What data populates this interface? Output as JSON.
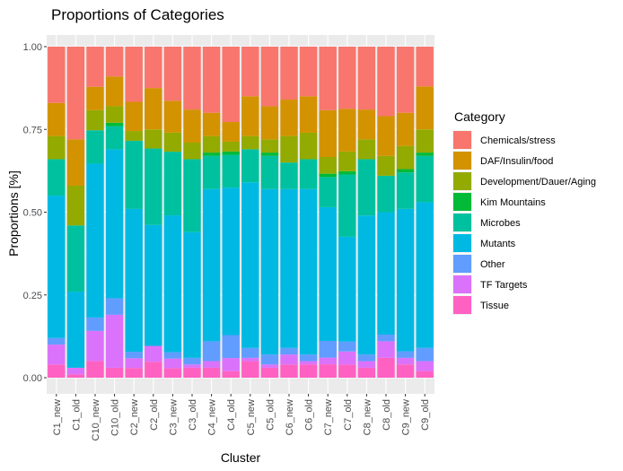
{
  "chart_data": {
    "type": "bar",
    "stacked": true,
    "title": "Proportions of Categories",
    "xlabel": "Cluster",
    "ylabel": "Proportions [%]",
    "ylim": [
      0,
      1
    ],
    "yticks": [
      "0.00",
      "0.25",
      "0.50",
      "0.75",
      "1.00"
    ],
    "ytick_values": [
      0,
      0.25,
      0.5,
      0.75,
      1.0
    ],
    "grid": true,
    "legend_position": "right",
    "legend_title": "Category",
    "categories": [
      "C1_new",
      "C1_old",
      "C10_new",
      "C10_old",
      "C2_new",
      "C2_old",
      "C3_new",
      "C3_old",
      "C4_new",
      "C4_old",
      "C5_new",
      "C5_old",
      "C6_new",
      "C6_old",
      "C7_new",
      "C7_old",
      "C8_new",
      "C8_old",
      "C9_new",
      "C9_old"
    ],
    "series": [
      {
        "name": "Tissue",
        "color": "#FF61C3",
        "values": [
          0.04,
          0.01,
          0.05,
          0.03,
          0.03,
          0.05,
          0.03,
          0.03,
          0.03,
          0.02,
          0.05,
          0.03,
          0.04,
          0.04,
          0.04,
          0.04,
          0.03,
          0.06,
          0.04,
          0.02
        ]
      },
      {
        "name": "TF Targets",
        "color": "#DB72FB",
        "values": [
          0.06,
          0.02,
          0.09,
          0.16,
          0.03,
          0.05,
          0.03,
          0.01,
          0.02,
          0.04,
          0.01,
          0.01,
          0.03,
          0.01,
          0.02,
          0.04,
          0.02,
          0.05,
          0.02,
          0.03
        ]
      },
      {
        "name": "Other",
        "color": "#619CFF",
        "values": [
          0.02,
          0.0,
          0.04,
          0.05,
          0.02,
          0.0,
          0.02,
          0.02,
          0.06,
          0.07,
          0.03,
          0.03,
          0.02,
          0.02,
          0.05,
          0.03,
          0.02,
          0.02,
          0.02,
          0.04
        ]
      },
      {
        "name": "Mutants",
        "color": "#00B9E3",
        "values": [
          0.43,
          0.23,
          0.46,
          0.45,
          0.44,
          0.38,
          0.43,
          0.38,
          0.46,
          0.45,
          0.5,
          0.5,
          0.48,
          0.5,
          0.4,
          0.32,
          0.42,
          0.37,
          0.43,
          0.44
        ]
      },
      {
        "name": "Microbes",
        "color": "#00C19F",
        "values": [
          0.11,
          0.2,
          0.1,
          0.07,
          0.21,
          0.24,
          0.2,
          0.22,
          0.1,
          0.1,
          0.1,
          0.1,
          0.08,
          0.09,
          0.09,
          0.19,
          0.17,
          0.11,
          0.11,
          0.14
        ]
      },
      {
        "name": "Kim Mountains",
        "color": "#00BA38",
        "values": [
          0.0,
          0.0,
          0.0,
          0.01,
          0.0,
          0.0,
          0.0,
          0.0,
          0.01,
          0.01,
          0.0,
          0.01,
          0.0,
          0.0,
          0.01,
          0.01,
          0.0,
          0.0,
          0.01,
          0.01
        ]
      },
      {
        "name": "Development/Dauer/Aging",
        "color": "#93AA00",
        "values": [
          0.07,
          0.12,
          0.06,
          0.05,
          0.03,
          0.06,
          0.06,
          0.05,
          0.05,
          0.03,
          0.04,
          0.04,
          0.08,
          0.08,
          0.05,
          0.06,
          0.06,
          0.06,
          0.07,
          0.07
        ]
      },
      {
        "name": "DAF/Insulin/food",
        "color": "#D39200",
        "values": [
          0.1,
          0.14,
          0.07,
          0.09,
          0.09,
          0.13,
          0.1,
          0.1,
          0.07,
          0.06,
          0.12,
          0.1,
          0.11,
          0.11,
          0.14,
          0.13,
          0.09,
          0.12,
          0.1,
          0.13
        ]
      },
      {
        "name": "Chemicals/stress",
        "color": "#F8766D",
        "values": [
          0.17,
          0.28,
          0.12,
          0.09,
          0.17,
          0.13,
          0.17,
          0.19,
          0.2,
          0.23,
          0.15,
          0.18,
          0.16,
          0.15,
          0.19,
          0.19,
          0.19,
          0.21,
          0.2,
          0.12
        ]
      }
    ],
    "legend_order": [
      "Chemicals/stress",
      "DAF/Insulin/food",
      "Development/Dauer/Aging",
      "Kim Mountains",
      "Microbes",
      "Mutants",
      "Other",
      "TF Targets",
      "Tissue"
    ]
  }
}
